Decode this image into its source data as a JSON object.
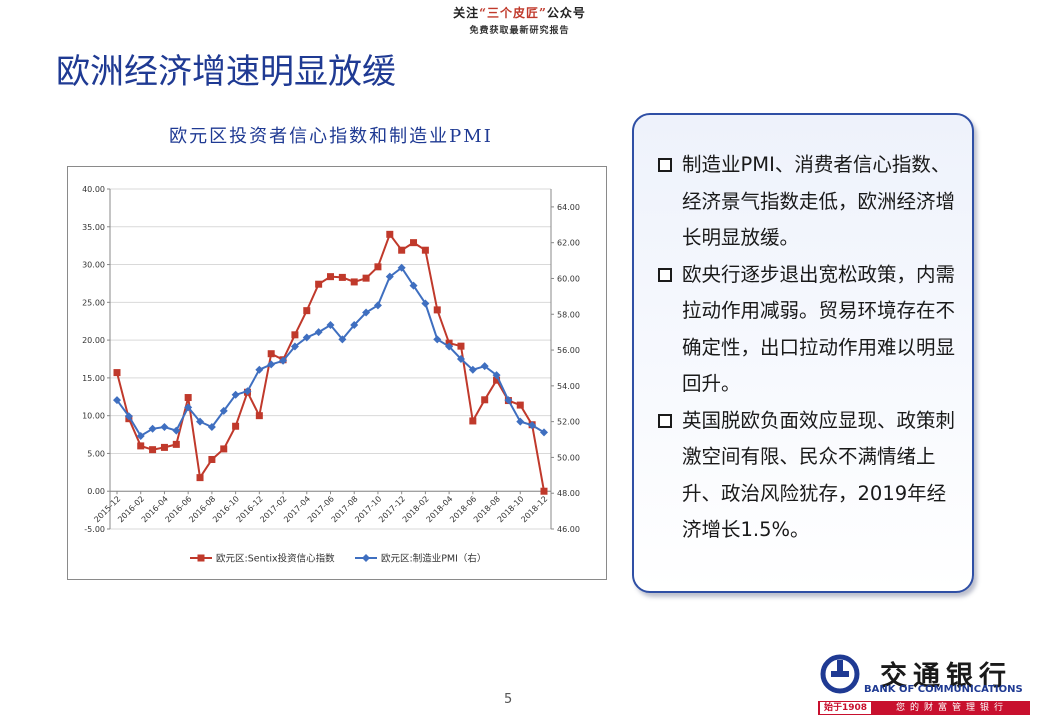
{
  "header": {
    "prefix": "关注",
    "highlight": "“三个皮匠”",
    "suffix": "公众号",
    "line2": "免费获取最新研究报告"
  },
  "slide_title": "欧洲经济增速明显放缓",
  "panel": {
    "bullets": [
      "制造业PMI、消费者信心指数、经济景气指数走低，欧洲经济增长明显放缓。",
      "欧央行逐步退出宽松政策，内需拉动作用减弱。贸易环境存在不确定性，出口拉动作用难以明显回升。",
      "英国脱欧负面效应显现、政策刺激空间有限、民众不满情绪上升、政治风险犹存，2019年经济增长1.5%。"
    ]
  },
  "page_number": "5",
  "logo": {
    "cn": "交通银行",
    "en": "BANK OF COMMUNICATIONS",
    "since": "始于1908",
    "slogan": "您的财富管理银行"
  },
  "colors": {
    "title_blue": "#1f3a93",
    "series1": "#c0392b",
    "series2": "#3f6fc0",
    "logo_red": "#c8102e"
  },
  "chart_data": {
    "type": "line",
    "title": "欧元区投资者信心指数和制造业PMI",
    "legend_position": "bottom",
    "grid": true,
    "x": [
      "2015-12",
      "2016-01",
      "2016-02",
      "2016-03",
      "2016-04",
      "2016-05",
      "2016-06",
      "2016-07",
      "2016-08",
      "2016-09",
      "2016-10",
      "2016-11",
      "2016-12",
      "2017-01",
      "2017-02",
      "2017-03",
      "2017-04",
      "2017-05",
      "2017-06",
      "2017-07",
      "2017-08",
      "2017-09",
      "2017-10",
      "2017-11",
      "2017-12",
      "2018-01",
      "2018-02",
      "2018-03",
      "2018-04",
      "2018-05",
      "2018-06",
      "2018-07",
      "2018-08",
      "2018-09",
      "2018-10",
      "2018-11",
      "2018-12"
    ],
    "x_tick_labels": [
      "2015-12",
      "2016-02",
      "2016-04",
      "2016-06",
      "2016-08",
      "2016-10",
      "2016-12",
      "2017-02",
      "2017-04",
      "2017-06",
      "2017-08",
      "2017-10",
      "2017-12",
      "2018-02",
      "2018-04",
      "2018-06",
      "2018-08",
      "2018-10",
      "2018-12"
    ],
    "y_left": {
      "min": -5,
      "max": 40,
      "ticks": [
        "-5.00",
        "0.00",
        "5.00",
        "10.00",
        "15.00",
        "20.00",
        "25.00",
        "30.00",
        "35.00",
        "40.00"
      ]
    },
    "y_right": {
      "min": 46,
      "max": 65,
      "ticks": [
        "46.00",
        "48.00",
        "50.00",
        "52.00",
        "54.00",
        "56.00",
        "58.00",
        "60.00",
        "62.00",
        "64.00"
      ]
    },
    "series": [
      {
        "name": "欧元区:Sentix投资信心指数",
        "axis": "left",
        "marker": "square",
        "values": [
          15.7,
          9.6,
          6.0,
          5.5,
          5.8,
          6.2,
          12.4,
          1.8,
          4.2,
          5.6,
          8.6,
          13.1,
          10.0,
          18.2,
          17.4,
          20.7,
          23.9,
          27.4,
          28.4,
          28.3,
          27.7,
          28.2,
          29.7,
          34.0,
          31.9,
          32.9,
          31.9,
          24.0,
          19.6,
          19.2,
          9.3,
          12.1,
          14.7,
          12.0,
          11.4,
          8.8,
          0.0
        ]
      },
      {
        "name": "欧元区:制造业PMI（右）",
        "axis": "right",
        "marker": "diamond",
        "values": [
          53.2,
          52.3,
          51.2,
          51.6,
          51.7,
          51.5,
          52.8,
          52.0,
          51.7,
          52.6,
          53.5,
          53.7,
          54.9,
          55.2,
          55.4,
          56.2,
          56.7,
          57.0,
          57.4,
          56.6,
          57.4,
          58.1,
          58.5,
          60.1,
          60.6,
          59.6,
          58.6,
          56.6,
          56.2,
          55.5,
          54.9,
          55.1,
          54.6,
          53.2,
          52.0,
          51.8,
          51.4
        ]
      }
    ]
  }
}
